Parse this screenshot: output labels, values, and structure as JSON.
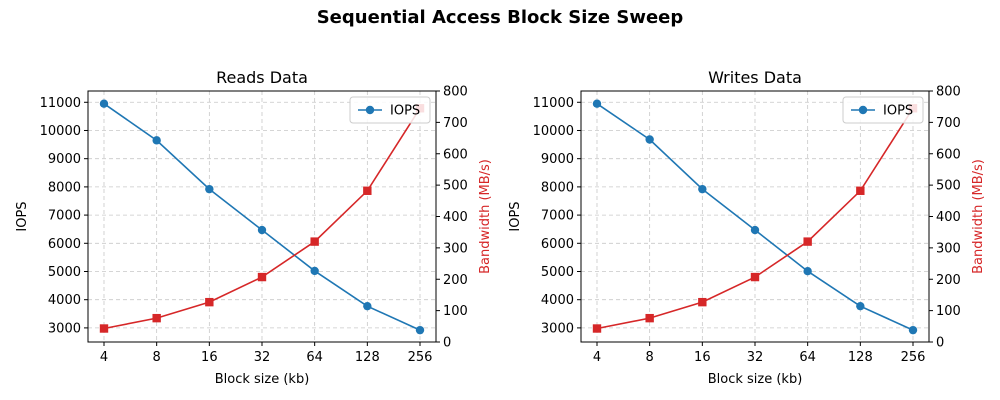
{
  "figure": {
    "title": "Sequential Access Block Size Sweep"
  },
  "colors": {
    "iops": "#1f77b4",
    "bandwidth": "#d62728",
    "grid": "#c8c8c8",
    "axis": "#000000"
  },
  "chart_data": [
    {
      "type": "line",
      "title": "Reads Data",
      "xlabel": "Block size (kb)",
      "ylabel": "IOPS",
      "ylabel_right": "Bandwidth (MB/s)",
      "x_scale": "log2",
      "categories": [
        "4",
        "8",
        "16",
        "32",
        "64",
        "128",
        "256"
      ],
      "x": [
        4,
        8,
        16,
        32,
        64,
        128,
        256
      ],
      "ylim": [
        2500,
        11400
      ],
      "yticks": [
        3000,
        4000,
        5000,
        6000,
        7000,
        8000,
        9000,
        10000,
        11000
      ],
      "ylim_right": [
        0,
        800
      ],
      "yticks_right": [
        0,
        100,
        200,
        300,
        400,
        500,
        600,
        700,
        800
      ],
      "grid": true,
      "legend": {
        "position": "top-right",
        "entries": [
          "IOPS"
        ]
      },
      "series": [
        {
          "name": "IOPS",
          "axis": "left",
          "marker": "circle",
          "values": [
            10950,
            9650,
            7920,
            6470,
            5020,
            3770,
            2920
          ]
        },
        {
          "axis": "right",
          "marker": "square",
          "values": [
            43,
            76,
            127,
            207,
            320,
            482,
            745
          ]
        }
      ]
    },
    {
      "type": "line",
      "title": "Writes Data",
      "xlabel": "Block size (kb)",
      "ylabel": "IOPS",
      "ylabel_right": "Bandwidth (MB/s)",
      "x_scale": "log2",
      "categories": [
        "4",
        "8",
        "16",
        "32",
        "64",
        "128",
        "256"
      ],
      "x": [
        4,
        8,
        16,
        32,
        64,
        128,
        256
      ],
      "ylim": [
        2500,
        11400
      ],
      "yticks": [
        3000,
        4000,
        5000,
        6000,
        7000,
        8000,
        9000,
        10000,
        11000
      ],
      "ylim_right": [
        0,
        800
      ],
      "yticks_right": [
        0,
        100,
        200,
        300,
        400,
        500,
        600,
        700,
        800
      ],
      "grid": true,
      "legend": {
        "position": "top-right",
        "entries": [
          "IOPS"
        ]
      },
      "series": [
        {
          "name": "IOPS",
          "axis": "left",
          "marker": "circle",
          "values": [
            10950,
            9680,
            7920,
            6470,
            5010,
            3770,
            2920
          ]
        },
        {
          "axis": "right",
          "marker": "square",
          "values": [
            43,
            76,
            127,
            207,
            320,
            482,
            745
          ]
        }
      ]
    }
  ]
}
